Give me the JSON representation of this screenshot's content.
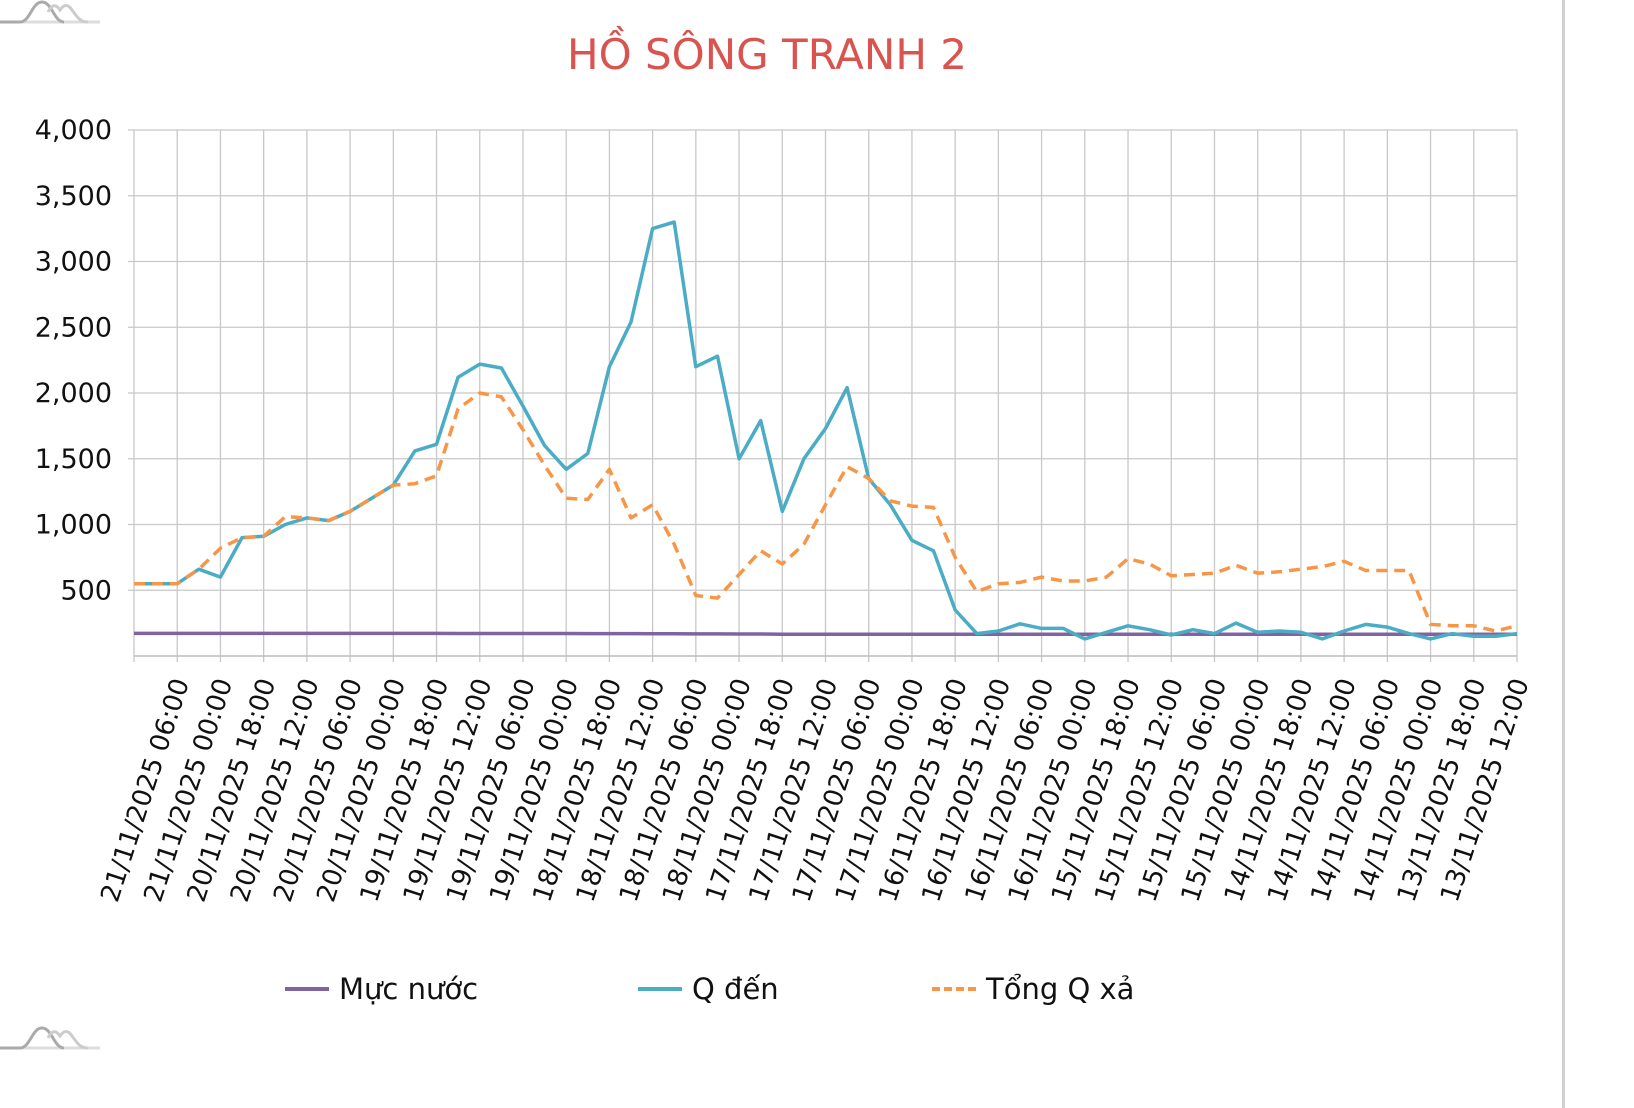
{
  "chart_data": {
    "type": "line",
    "title": "HỒ SÔNG TRANH 2",
    "xlabel": "",
    "ylabel": "",
    "ylim": [
      0,
      4000
    ],
    "y_ticks": [
      "500",
      "1,000",
      "1,500",
      "2,000",
      "2,500",
      "3,000",
      "3,500",
      "4,000"
    ],
    "y_tick_values": [
      500,
      1000,
      1500,
      2000,
      2500,
      3000,
      3500,
      4000
    ],
    "grid": true,
    "legend_position": "bottom",
    "x_step": "3 hours, from 21/11/2025 12:00 back to 13/11/2025 12:00",
    "x_tick_labels": [
      "21/11/2025 06:00",
      "21/11/2025 00:00",
      "20/11/2025 18:00",
      "20/11/2025 12:00",
      "20/11/2025 06:00",
      "20/11/2025 00:00",
      "19/11/2025 18:00",
      "19/11/2025 12:00",
      "19/11/2025 06:00",
      "19/11/2025 00:00",
      "18/11/2025 18:00",
      "18/11/2025 12:00",
      "18/11/2025 06:00",
      "18/11/2025 00:00",
      "17/11/2025 18:00",
      "17/11/2025 12:00",
      "17/11/2025 06:00",
      "17/11/2025 00:00",
      "16/11/2025 18:00",
      "16/11/2025 12:00",
      "16/11/2025 06:00",
      "16/11/2025 00:00",
      "15/11/2025 18:00",
      "15/11/2025 12:00",
      "15/11/2025 06:00",
      "15/11/2025 00:00",
      "14/11/2025 18:00",
      "14/11/2025 12:00",
      "14/11/2025 06:00",
      "14/11/2025 00:00",
      "13/11/2025 18:00",
      "13/11/2025 12:00"
    ],
    "series": [
      {
        "name": "Mực nước",
        "color": "#8064a2",
        "dash": false,
        "values": [
          172,
          172,
          172,
          172,
          172,
          172,
          172,
          172,
          172,
          172,
          172,
          172,
          172,
          172,
          172,
          171,
          171,
          171,
          171,
          171,
          171,
          170,
          170,
          170,
          169,
          169,
          168,
          168,
          167,
          167,
          166,
          166,
          166,
          166,
          166,
          166,
          165,
          165,
          165,
          165,
          165,
          165,
          165,
          165,
          165,
          165,
          165,
          165,
          165,
          165,
          165,
          165,
          165,
          165,
          165,
          165,
          165,
          165,
          165,
          165,
          165,
          165,
          165,
          165,
          165
        ]
      },
      {
        "name": "Q đến",
        "color": "#4bacc6",
        "dash": false,
        "values": [
          550,
          550,
          550,
          660,
          600,
          900,
          910,
          1000,
          1050,
          1030,
          1100,
          1200,
          1300,
          1560,
          1610,
          2120,
          2220,
          2190,
          1900,
          1600,
          1420,
          1540,
          2200,
          2540,
          3250,
          3300,
          2200,
          2280,
          1500,
          1790,
          1100,
          1500,
          1730,
          2040,
          1350,
          1150,
          880,
          800,
          350,
          170,
          190,
          245,
          210,
          210,
          130,
          180,
          230,
          200,
          160,
          200,
          170,
          250,
          180,
          190,
          180,
          130,
          190,
          240,
          220,
          170,
          130,
          170,
          150,
          150,
          170
        ]
      },
      {
        "name": "Tổng Q xả",
        "color": "#f79646",
        "dash": true,
        "values": [
          550,
          550,
          550,
          660,
          820,
          900,
          910,
          1060,
          1050,
          1030,
          1100,
          1200,
          1300,
          1310,
          1370,
          1880,
          2000,
          1970,
          1720,
          1450,
          1200,
          1190,
          1420,
          1050,
          1150,
          850,
          460,
          440,
          620,
          800,
          700,
          850,
          1150,
          1440,
          1350,
          1180,
          1140,
          1130,
          750,
          490,
          550,
          560,
          600,
          570,
          570,
          600,
          740,
          700,
          610,
          620,
          630,
          690,
          630,
          640,
          660,
          680,
          720,
          650,
          650,
          650,
          240,
          230,
          230,
          190,
          230
        ]
      }
    ]
  }
}
